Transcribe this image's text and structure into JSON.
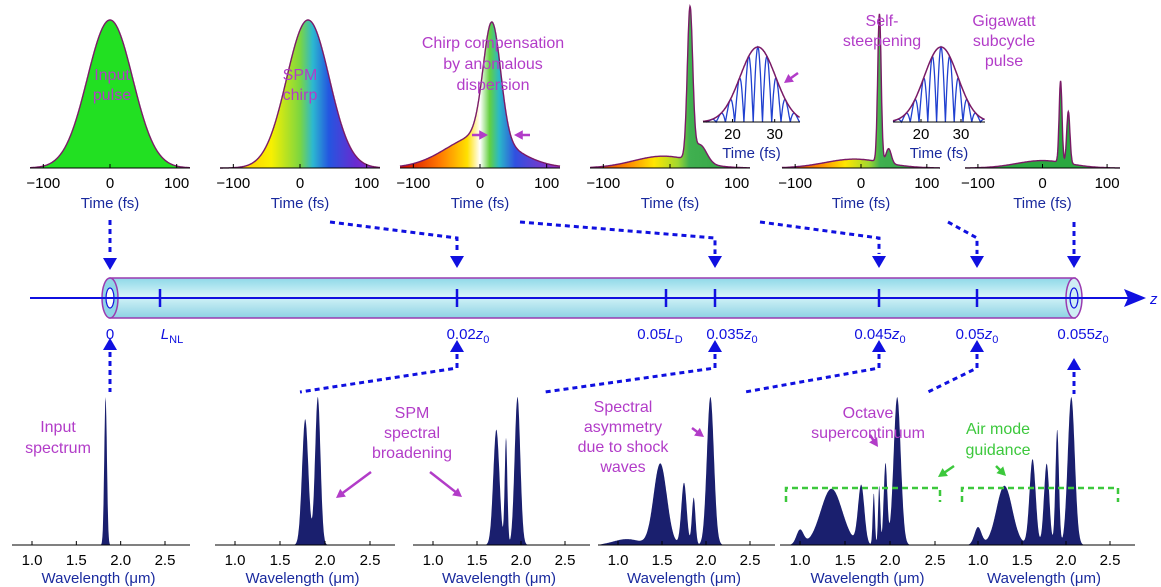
{
  "colors": {
    "annotation": "#b23cc8",
    "air_mode": "#3cc83c",
    "axis_blue": "#1010e0",
    "spectrum_fill": "#1a1f6e",
    "pulse_outline": "#7a1a66",
    "fiber_fill": "#a8e4ee"
  },
  "temporal": {
    "tick_labels": [
      "−100",
      "0",
      "100"
    ],
    "inset_tick_labels": [
      "20",
      "30"
    ],
    "xlabel": "Time (fs)",
    "annotations": [
      [
        "Input",
        "pulse"
      ],
      [
        "SPM",
        "chirp"
      ],
      [
        "Chirp compensation",
        "by anomalous",
        "dispersion"
      ],
      [],
      [
        "Self-",
        "steepening"
      ],
      [
        "Gigawatt",
        "subcycle",
        "pulse"
      ]
    ]
  },
  "spectral": {
    "tick_labels": [
      "1.0",
      "1.5",
      "2.0",
      "2.5"
    ],
    "xlabel": "Wavelength (μm)",
    "annotations": [
      [
        "Input",
        "spectrum"
      ],
      [
        "SPM",
        "spectral",
        "broadening"
      ],
      [
        "Spectral",
        "asymmetry",
        "due to shock",
        "waves"
      ],
      [
        "Octave",
        "supercontinuum"
      ],
      [
        "Air mode",
        "guidance"
      ]
    ]
  },
  "fiber": {
    "axis_label": "z",
    "positions": [
      {
        "label": "0"
      },
      {
        "label": "L",
        "sub": "NL"
      },
      {
        "label": "0.02z",
        "sub": "0"
      },
      {
        "label": "0.05L",
        "sub": "D"
      },
      {
        "label": "0.035z",
        "sub": "0"
      },
      {
        "label": "0.045z",
        "sub": "0"
      },
      {
        "label": "0.05z",
        "sub": "0"
      },
      {
        "label": "0.055z",
        "sub": "0"
      }
    ]
  }
}
